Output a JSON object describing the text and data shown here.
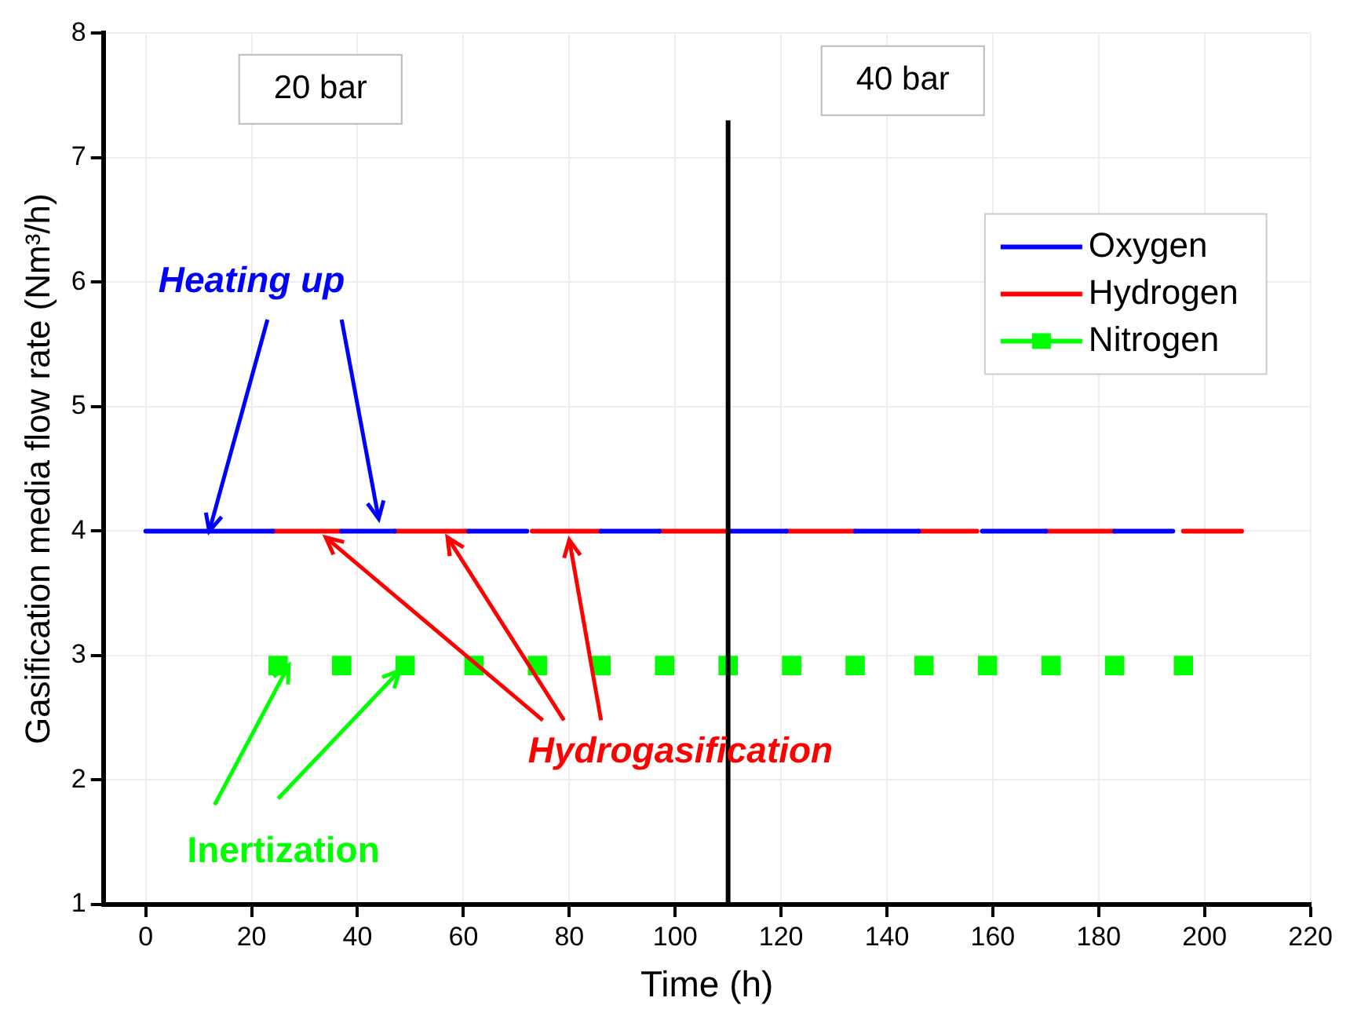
{
  "chart_data": {
    "type": "line",
    "xlabel": "Time (h)",
    "ylabel": "Gasification media flow rate (Nm³/h)",
    "xlim": [
      -8,
      220
    ],
    "xticks": [
      0,
      20,
      40,
      60,
      80,
      100,
      120,
      140,
      160,
      180,
      200,
      220
    ],
    "ylim": [
      1,
      8
    ],
    "yticks": [
      1,
      2,
      3,
      4,
      5,
      6,
      7,
      8
    ],
    "series": [
      {
        "name": "Oxygen",
        "color": "#0000ff",
        "x": [
          0,
          24,
          30,
          37,
          47,
          54,
          61,
          72,
          79,
          86,
          97,
          104,
          110,
          121,
          128,
          134,
          146,
          152,
          158,
          170,
          176,
          183,
          194
        ],
        "values": [
          4,
          4,
          null,
          4,
          4,
          null,
          4,
          4,
          null,
          4,
          4,
          null,
          4,
          4,
          null,
          4,
          4,
          null,
          4,
          4,
          null,
          4,
          4
        ]
      },
      {
        "name": "Hydrogen",
        "color": "#ff0000",
        "x": [
          24,
          37,
          42,
          47,
          61,
          67,
          73,
          86,
          92,
          97,
          110,
          116,
          121,
          134,
          140,
          146,
          157,
          164,
          170,
          183,
          190,
          196,
          207
        ],
        "values": [
          4,
          4,
          null,
          4,
          4,
          null,
          4,
          4,
          null,
          4,
          4,
          null,
          4,
          4,
          null,
          4,
          4,
          null,
          4,
          4,
          null,
          4,
          4
        ]
      },
      {
        "name": "Nitrogen",
        "type": "scatter",
        "marker": "square",
        "color": "#00ff00",
        "x": [
          25,
          37,
          49,
          62,
          74,
          86,
          98,
          110,
          122,
          134,
          147,
          159,
          171,
          183,
          196
        ],
        "values": [
          2.92,
          2.92,
          2.92,
          2.92,
          2.92,
          2.92,
          2.92,
          2.92,
          2.92,
          2.92,
          2.92,
          2.92,
          2.92,
          2.92,
          2.92
        ]
      }
    ],
    "ref_lines": [
      {
        "axis": "x",
        "value": 110,
        "color": "#000000"
      }
    ],
    "annotations": [
      "20 bar",
      "40 bar",
      {
        "text": "Heating up",
        "x": 12,
        "y": 4
      },
      {
        "text": "Hydrogasification",
        "x": 34,
        "y": 3.95
      },
      {
        "text": "Inertization",
        "x": 27,
        "y": 2.92
      }
    ],
    "grid": true,
    "legend": "top right",
    "marker": "none",
    "line_style": "solid"
  }
}
